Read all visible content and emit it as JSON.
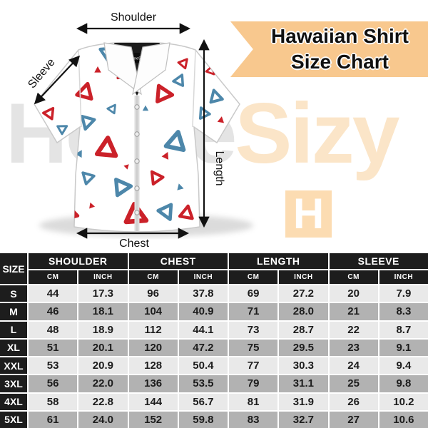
{
  "banner": {
    "line1": "Hawaiian Shirt",
    "line2": "Size Chart"
  },
  "watermark": {
    "part1": "Home",
    "part2": "Sizy",
    "logo_letter": "H"
  },
  "shirt": {
    "tag_label": "HomeSizy"
  },
  "diagram_labels": {
    "shoulder": "Shoulder",
    "sleeve": "Sleeve",
    "length": "Length",
    "chest": "Chest"
  },
  "colors": {
    "banner_bg": "#f8c88e",
    "watermark_gray": "#e4e4e4",
    "watermark_peach": "#fbe5c8",
    "logo_bg": "#fcdcb2",
    "pattern_red": "#cb2129",
    "pattern_blue": "#4d87aa",
    "table_header_bg": "#1d1d1d",
    "row_light": "#e9e9e9",
    "row_shaded": "#b2b2b2"
  },
  "chart_data": {
    "type": "table",
    "title": "Hawaiian Shirt Size Chart",
    "size_label": "SIZE",
    "groups": [
      "SHOULDER",
      "CHEST",
      "LENGTH",
      "SLEEVE"
    ],
    "units": [
      "CM",
      "INCH"
    ],
    "rows": [
      {
        "size": "S",
        "values": [
          "44",
          "17.3",
          "96",
          "37.8",
          "69",
          "27.2",
          "20",
          "7.9"
        ]
      },
      {
        "size": "M",
        "values": [
          "46",
          "18.1",
          "104",
          "40.9",
          "71",
          "28.0",
          "21",
          "8.3"
        ]
      },
      {
        "size": "L",
        "values": [
          "48",
          "18.9",
          "112",
          "44.1",
          "73",
          "28.7",
          "22",
          "8.7"
        ]
      },
      {
        "size": "XL",
        "values": [
          "51",
          "20.1",
          "120",
          "47.2",
          "75",
          "29.5",
          "23",
          "9.1"
        ]
      },
      {
        "size": "XXL",
        "values": [
          "53",
          "20.9",
          "128",
          "50.4",
          "77",
          "30.3",
          "24",
          "9.4"
        ]
      },
      {
        "size": "3XL",
        "values": [
          "56",
          "22.0",
          "136",
          "53.5",
          "79",
          "31.1",
          "25",
          "9.8"
        ]
      },
      {
        "size": "4XL",
        "values": [
          "58",
          "22.8",
          "144",
          "56.7",
          "81",
          "31.9",
          "26",
          "10.2"
        ]
      },
      {
        "size": "5XL",
        "values": [
          "61",
          "24.0",
          "152",
          "59.8",
          "83",
          "32.7",
          "27",
          "10.6"
        ]
      }
    ]
  }
}
